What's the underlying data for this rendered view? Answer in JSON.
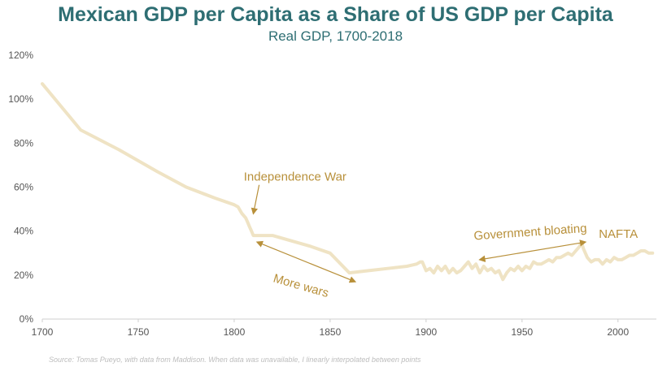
{
  "chart_data": {
    "type": "line",
    "title": "Mexican GDP per Capita as a Share of US GDP per Capita",
    "subtitle": "Real GDP, 1700-2018",
    "xlabel": "",
    "ylabel": "",
    "xlim": [
      1700,
      2020
    ],
    "ylim": [
      0,
      120
    ],
    "x_ticks": [
      1700,
      1750,
      1800,
      1850,
      1900,
      1950,
      2000
    ],
    "y_ticks": [
      "0%",
      "20%",
      "40%",
      "60%",
      "80%",
      "100%",
      "120%"
    ],
    "grid": false,
    "line_color": "#efe3c4",
    "annotation_color": "#b8903a",
    "series": [
      {
        "x": [
          1700,
          1720,
          1740,
          1760,
          1775,
          1790,
          1800,
          1802,
          1804,
          1806,
          1807,
          1808,
          1809,
          1810,
          1812,
          1820,
          1840,
          1850,
          1860,
          1870,
          1880,
          1890,
          1895,
          1897,
          1898,
          1900,
          1902,
          1904,
          1906,
          1908,
          1910,
          1912,
          1914,
          1916,
          1918,
          1920,
          1922,
          1924,
          1926,
          1928,
          1930,
          1932,
          1934,
          1936,
          1938,
          1940,
          1942,
          1944,
          1946,
          1948,
          1950,
          1952,
          1954,
          1956,
          1958,
          1960,
          1962,
          1964,
          1966,
          1968,
          1970,
          1972,
          1974,
          1976,
          1978,
          1980,
          1981,
          1982,
          1984,
          1986,
          1988,
          1990,
          1992,
          1994,
          1996,
          1998,
          2000,
          2002,
          2004,
          2006,
          2008,
          2010,
          2012,
          2014,
          2016,
          2018
        ],
        "y": [
          107,
          86,
          77,
          67,
          60,
          55,
          52,
          51,
          48,
          46,
          44,
          42,
          40,
          38,
          38,
          38,
          33,
          30,
          21,
          22,
          23,
          24,
          25,
          26,
          26,
          22,
          23,
          21,
          24,
          22,
          24,
          21,
          23,
          21,
          22,
          24,
          26,
          23,
          25,
          21,
          24,
          22,
          23,
          21,
          22,
          18,
          21,
          23,
          22,
          24,
          22,
          24,
          23,
          26,
          25,
          25,
          26,
          27,
          26,
          28,
          28,
          29,
          30,
          29,
          31,
          33,
          35,
          32,
          28,
          26,
          27,
          27,
          25,
          27,
          26,
          28,
          27,
          27,
          28,
          29,
          29,
          30,
          31,
          31,
          30,
          30
        ]
      }
    ],
    "annotations": [
      {
        "text": "Independence War",
        "x": 1805,
        "y": 63
      },
      {
        "text": "More wars",
        "x": 1820,
        "y": 17
      },
      {
        "text": "Government bloating",
        "x": 1925,
        "y": 36
      },
      {
        "text": "NAFTA",
        "x": 1990,
        "y": 37
      }
    ]
  },
  "source": "Source: Tomas Pueyo, with data from Maddison. When data was unavailable, I linearly interpolated between points"
}
